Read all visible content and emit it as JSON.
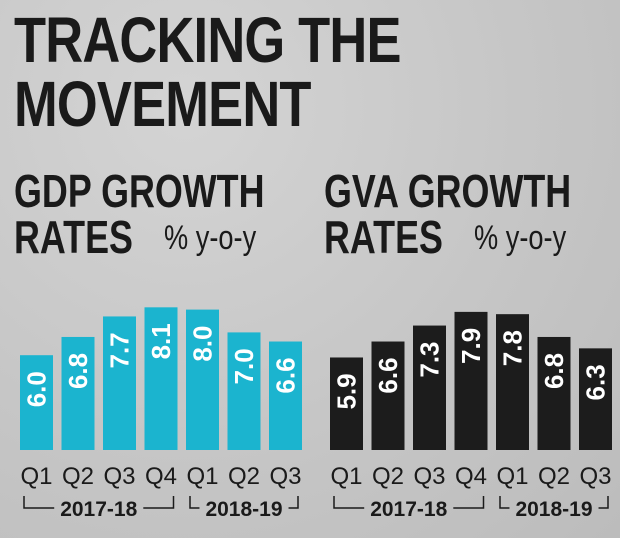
{
  "title": {
    "line1": "TRACKING THE",
    "line2": "MOVEMENT"
  },
  "colors": {
    "gdp_bar": "#1bb4cf",
    "gva_bar": "#1c1c1c",
    "bar_text": "#ffffff",
    "text": "#1a1a1a"
  },
  "chart_data": [
    {
      "type": "bar",
      "title_line1": "GDP GROWTH",
      "title_line2": "RATES",
      "unit": "% y-o-y",
      "categories": [
        "Q1",
        "Q2",
        "Q3",
        "Q4",
        "Q1",
        "Q2",
        "Q3"
      ],
      "values": [
        6.0,
        6.8,
        7.7,
        8.1,
        8.0,
        7.0,
        6.6
      ],
      "value_labels": [
        "6.0",
        "6.8",
        "7.7",
        "8.1",
        "8.0",
        "7.0",
        "6.6"
      ],
      "groups": [
        {
          "label": "2017-18",
          "start": 0,
          "end": 3
        },
        {
          "label": "2018-19",
          "start": 4,
          "end": 6
        }
      ],
      "ylim": [
        0,
        9
      ]
    },
    {
      "type": "bar",
      "title_line1": "GVA GROWTH",
      "title_line2": "RATES",
      "unit": "% y-o-y",
      "categories": [
        "Q1",
        "Q2",
        "Q3",
        "Q4",
        "Q1",
        "Q2",
        "Q3"
      ],
      "values": [
        5.9,
        6.6,
        7.3,
        7.9,
        7.8,
        6.8,
        6.3
      ],
      "value_labels": [
        "5.9",
        "6.6",
        "7.3",
        "7.9",
        "7.8",
        "6.8",
        "6.3"
      ],
      "groups": [
        {
          "label": "2017-18",
          "start": 0,
          "end": 3
        },
        {
          "label": "2018-19",
          "start": 4,
          "end": 6
        }
      ],
      "ylim": [
        0,
        9
      ]
    }
  ]
}
